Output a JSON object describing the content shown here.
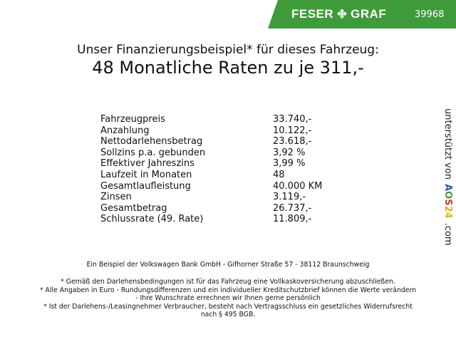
{
  "header": {
    "brand_left": "FESER",
    "brand_right": "GRAF",
    "code": "39968",
    "green": "#3f9b3a"
  },
  "title": {
    "line1": "Unser Finanzierungsbeispiel* für dieses Fahrzeug:",
    "line2": "48 Monatliche Raten zu je 311,-"
  },
  "rows": [
    {
      "label": "Fahrzeugpreis",
      "value": "33.740,-"
    },
    {
      "label": "Anzahlung",
      "value": "10.122,-"
    },
    {
      "label": "Nettodarlehensbetrag",
      "value": "23.618,-"
    },
    {
      "label": "Sollzins p.a. gebunden",
      "value": "3,92 %"
    },
    {
      "label": "Effektiver Jahreszins",
      "value": "3,99 %"
    },
    {
      "label": "Laufzeit in Monaten",
      "value": "48"
    },
    {
      "label": "Gesamtlaufleistung",
      "value": "40.000 KM"
    },
    {
      "label": "Zinsen",
      "value": "3.119,-"
    },
    {
      "label": "Gesamtbetrag",
      "value": "26.737,-"
    },
    {
      "label": "Schlussrate (49. Rate)",
      "value": "11.809,-"
    }
  ],
  "side": {
    "text": "unterstützt von",
    "logo": "AOS24",
    "suffix": ".com"
  },
  "footer": {
    "bank": "Ein Beispiel der Volkswagen Bank GmbH - Gifhorner Straße 57 - 38112 Braunschweig",
    "note1": "* Gemäß den Darlehensbedingungen ist für das Fahrzeug eine Vollkaskoversicherung abzuschließen.",
    "note2a": "* Alle Angaben in Euro - Rundungsdifferenzen und ein individueller Kreditschutzbrief können die Werte verändern",
    "note2b": "- Ihre Wunschrate errechnen wir Ihnen gerne persönlich",
    "note3a": "* Ist der Darlehens-/Leasingnehmer Verbraucher, besteht nach Vertragsschluss ein gesetzliches Widerrufsrecht",
    "note3b": "nach § 495 BGB."
  }
}
